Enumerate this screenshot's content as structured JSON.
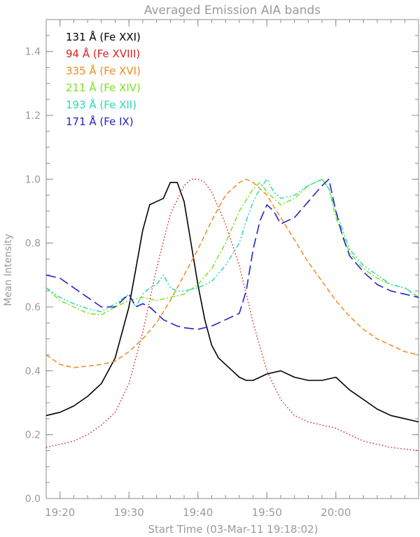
{
  "chart_data": {
    "type": "line",
    "title": "Averaged Emission AIA bands",
    "xlabel": "Start Time (03-Mar-11 19:18:02)",
    "ylabel": "Mean Intensity",
    "x_unit": "minutes after 19:18:02",
    "xlim": [
      0,
      54
    ],
    "ylim": [
      0.0,
      1.5
    ],
    "x_ticks": [
      {
        "value": 2,
        "label": "19:20"
      },
      {
        "value": 12,
        "label": "19:30"
      },
      {
        "value": 22,
        "label": "19:40"
      },
      {
        "value": 32,
        "label": "19:50"
      },
      {
        "value": 42,
        "label": "20:00"
      }
    ],
    "y_ticks": [
      {
        "value": 0.0,
        "label": "0.0"
      },
      {
        "value": 0.2,
        "label": "0.2"
      },
      {
        "value": 0.4,
        "label": "0.4"
      },
      {
        "value": 0.6,
        "label": "0.6"
      },
      {
        "value": 0.8,
        "label": "0.8"
      },
      {
        "value": 1.0,
        "label": "1.0"
      },
      {
        "value": 1.2,
        "label": "1.2"
      },
      {
        "value": 1.4,
        "label": "1.4"
      }
    ],
    "grid": false,
    "legend_position": "top-left",
    "series": [
      {
        "name": "131 Å (Fe XXI)",
        "color": "#000000",
        "style": "solid",
        "width": 1.6,
        "x": [
          0,
          2,
          4,
          6,
          8,
          10,
          12,
          13,
          14,
          15,
          16,
          17,
          18,
          19,
          20,
          21,
          22,
          23,
          24,
          25,
          26,
          27,
          28,
          29,
          30,
          32,
          34,
          36,
          38,
          40,
          42,
          44,
          46,
          48,
          50,
          52,
          54
        ],
        "y": [
          0.26,
          0.27,
          0.29,
          0.32,
          0.36,
          0.44,
          0.6,
          0.72,
          0.84,
          0.92,
          0.93,
          0.94,
          0.99,
          0.99,
          0.93,
          0.8,
          0.67,
          0.56,
          0.48,
          0.44,
          0.42,
          0.4,
          0.38,
          0.37,
          0.37,
          0.39,
          0.4,
          0.38,
          0.37,
          0.37,
          0.38,
          0.34,
          0.31,
          0.28,
          0.26,
          0.25,
          0.24
        ]
      },
      {
        "name": "94 Å (Fe XVIII)",
        "color": "#dd2020",
        "style": "dotted",
        "width": 1.5,
        "x": [
          0,
          2,
          4,
          6,
          8,
          10,
          12,
          14,
          16,
          18,
          20,
          21,
          22,
          23,
          24,
          25,
          26,
          28,
          30,
          32,
          34,
          36,
          38,
          40,
          42,
          44,
          46,
          48,
          50,
          52,
          54
        ],
        "y": [
          0.16,
          0.17,
          0.18,
          0.2,
          0.23,
          0.27,
          0.36,
          0.52,
          0.72,
          0.89,
          0.98,
          1.0,
          1.0,
          0.99,
          0.96,
          0.91,
          0.86,
          0.73,
          0.55,
          0.4,
          0.31,
          0.26,
          0.24,
          0.23,
          0.22,
          0.2,
          0.18,
          0.17,
          0.16,
          0.155,
          0.15
        ]
      },
      {
        "name": "335 Å (Fe XVI)",
        "color": "#f08a1e",
        "style": "dashed",
        "width": 1.5,
        "x": [
          0,
          2,
          4,
          6,
          8,
          10,
          12,
          14,
          16,
          18,
          20,
          22,
          24,
          26,
          28,
          29,
          30,
          31,
          32,
          34,
          36,
          38,
          40,
          42,
          44,
          46,
          48,
          50,
          52,
          54
        ],
        "y": [
          0.45,
          0.42,
          0.41,
          0.415,
          0.42,
          0.43,
          0.46,
          0.5,
          0.55,
          0.62,
          0.7,
          0.78,
          0.87,
          0.95,
          0.99,
          1.0,
          0.99,
          0.97,
          0.95,
          0.88,
          0.81,
          0.74,
          0.68,
          0.62,
          0.57,
          0.53,
          0.5,
          0.48,
          0.46,
          0.45
        ]
      },
      {
        "name": "211 Å (Fe XIV)",
        "color": "#7ae21e",
        "style": "dashdot",
        "width": 1.5,
        "x": [
          0,
          2,
          4,
          6,
          8,
          10,
          12,
          14,
          16,
          18,
          20,
          22,
          24,
          26,
          28,
          30,
          31,
          32,
          34,
          36,
          38,
          40,
          41,
          42,
          44,
          46,
          48,
          50,
          52,
          54
        ],
        "y": [
          0.66,
          0.62,
          0.6,
          0.58,
          0.575,
          0.6,
          0.62,
          0.63,
          0.62,
          0.63,
          0.64,
          0.67,
          0.72,
          0.8,
          0.9,
          0.97,
          0.99,
          0.96,
          0.92,
          0.94,
          0.98,
          1.0,
          0.97,
          0.88,
          0.77,
          0.72,
          0.69,
          0.67,
          0.66,
          0.63
        ]
      },
      {
        "name": "193 Å (Fe XII)",
        "color": "#27dbb8",
        "style": "dashdotdot",
        "width": 1.5,
        "x": [
          0,
          2,
          4,
          6,
          8,
          10,
          12,
          13,
          14,
          15,
          16,
          17,
          18,
          19,
          20,
          22,
          24,
          26,
          28,
          29,
          30,
          31,
          32,
          33,
          34,
          36,
          38,
          40,
          41,
          42,
          44,
          46,
          48,
          50,
          52,
          54
        ],
        "y": [
          0.66,
          0.63,
          0.61,
          0.595,
          0.585,
          0.61,
          0.64,
          0.6,
          0.64,
          0.66,
          0.67,
          0.7,
          0.66,
          0.65,
          0.65,
          0.66,
          0.68,
          0.73,
          0.8,
          0.87,
          0.93,
          0.97,
          1.0,
          0.96,
          0.94,
          0.95,
          0.98,
          1.0,
          0.97,
          0.9,
          0.78,
          0.73,
          0.7,
          0.67,
          0.66,
          0.63
        ]
      },
      {
        "name": "171 Å (Fe IX)",
        "color": "#2222c8",
        "style": "longdash",
        "width": 1.6,
        "x": [
          0,
          2,
          4,
          6,
          8,
          10,
          12,
          13,
          14,
          15,
          16,
          17,
          18,
          19,
          20,
          22,
          24,
          26,
          28,
          29,
          30,
          31,
          32,
          33,
          34,
          35,
          36,
          38,
          40,
          41,
          42,
          43,
          44,
          46,
          48,
          50,
          52,
          54
        ],
        "y": [
          0.7,
          0.69,
          0.66,
          0.63,
          0.6,
          0.6,
          0.64,
          0.6,
          0.61,
          0.6,
          0.58,
          0.56,
          0.55,
          0.54,
          0.535,
          0.53,
          0.54,
          0.56,
          0.58,
          0.65,
          0.78,
          0.87,
          0.92,
          0.9,
          0.86,
          0.87,
          0.88,
          0.93,
          0.98,
          1.0,
          0.9,
          0.82,
          0.76,
          0.71,
          0.67,
          0.65,
          0.64,
          0.63
        ]
      }
    ]
  }
}
